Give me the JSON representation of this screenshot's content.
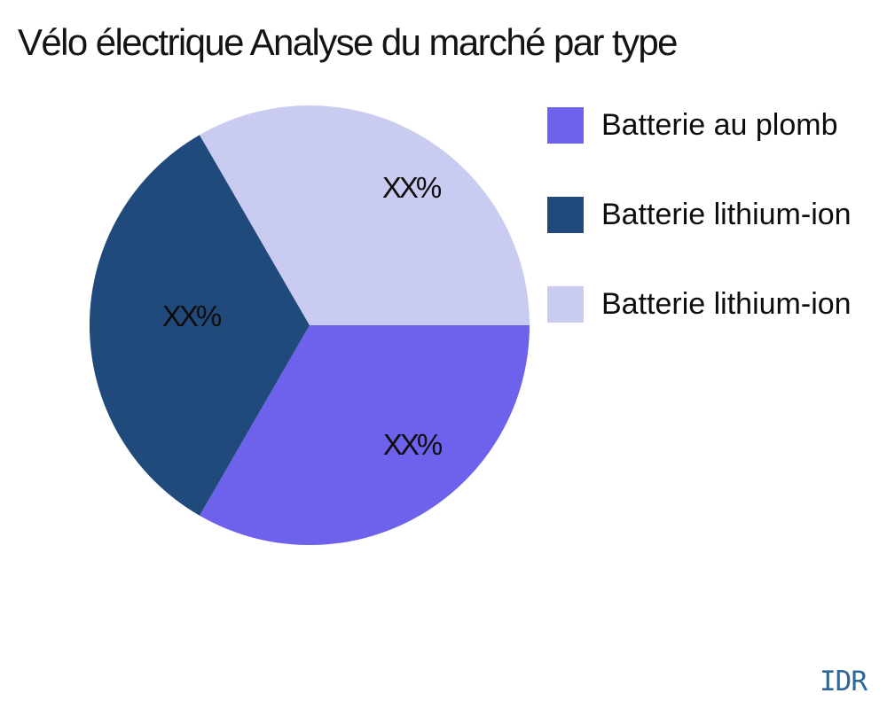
{
  "page": {
    "background_color": "#ffffff"
  },
  "watermark": "IDR",
  "watermark_color": "#2e6698",
  "chart_data": {
    "type": "pie",
    "title": "Vélo électrique Analyse du marché par type",
    "legend_position": "right",
    "direction": "clockwise",
    "start_angle_deg": 0,
    "values_displayed": false,
    "slices": [
      {
        "name": "Batterie au plomb",
        "display_label": "XX%",
        "color": "#6e62ed",
        "angle_degrees": 120,
        "estimated_share_pct": 33.3
      },
      {
        "name": "Batterie lithium-ion",
        "display_label": "XX%",
        "color": "#204a7c",
        "angle_degrees": 120,
        "estimated_share_pct": 33.3
      },
      {
        "name": "Batterie lithium-ion",
        "display_label": "XX%",
        "color": "#c9ccf0",
        "angle_degrees": 120,
        "estimated_share_pct": 33.3
      }
    ]
  }
}
